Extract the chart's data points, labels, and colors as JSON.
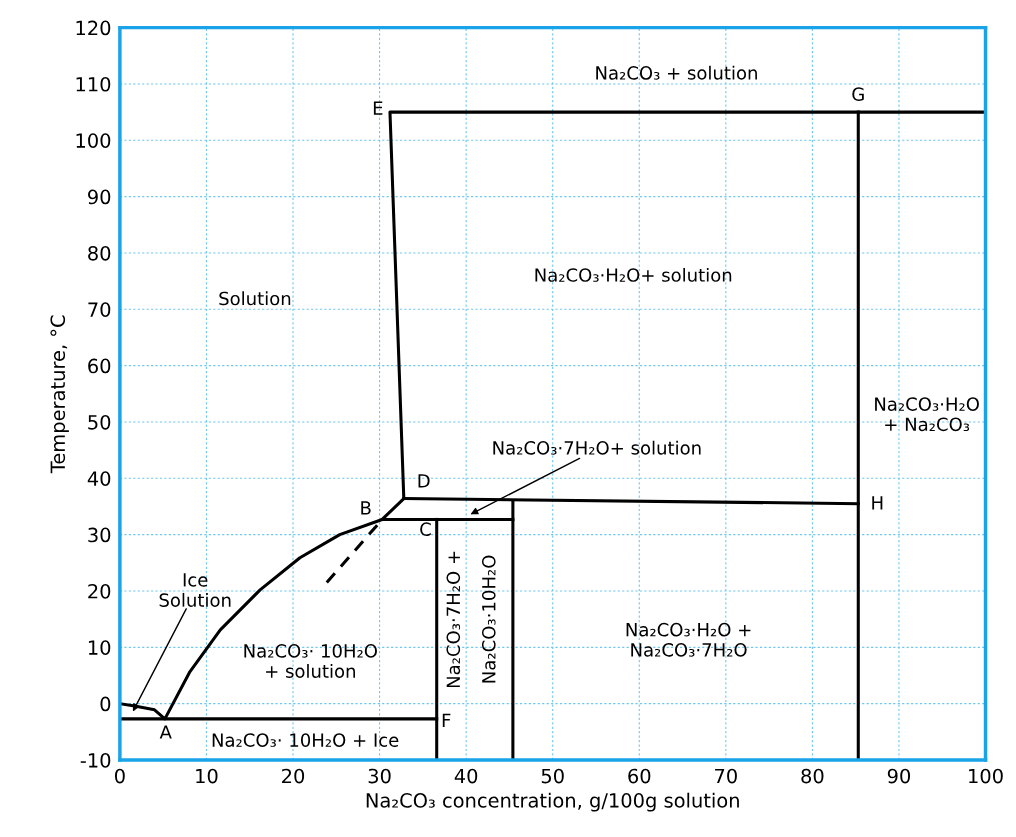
{
  "chart_data": {
    "type": "line",
    "xlabel": "Na₂CO₃ concentration, g/100g solution",
    "ylabel": "Temperature, °C",
    "xlim": [
      0,
      100
    ],
    "ylim": [
      -10,
      120
    ],
    "xticks": [
      0,
      10,
      20,
      30,
      40,
      50,
      60,
      70,
      80,
      90,
      100
    ],
    "yticks": [
      -10,
      0,
      10,
      20,
      30,
      40,
      50,
      60,
      70,
      80,
      90,
      100,
      110,
      120
    ],
    "grid": true,
    "legend": false,
    "marker": "none",
    "series": [
      {
        "color": "#000000",
        "x": [
          0,
          1.7,
          4.0,
          5.2,
          8.1,
          11.6,
          16.2,
          20.8,
          25.4,
          30.3,
          32.8,
          31.2,
          100
        ],
        "values": [
          0,
          -0.4,
          -1.1,
          -2.7,
          5.7,
          13.1,
          20.2,
          25.9,
          30.0,
          32.7,
          36.4,
          105,
          105
        ]
      },
      {
        "color": "#000000",
        "line_style": "dashed",
        "x": [
          23.9,
          30.3
        ],
        "values": [
          21.5,
          32.7
        ]
      },
      {
        "color": "#000000",
        "x": [
          85.3,
          85.3
        ],
        "values": [
          105,
          -10
        ]
      },
      {
        "color": "#000000",
        "x": [
          32.8,
          85.3
        ],
        "values": [
          36.4,
          35.5
        ]
      },
      {
        "color": "#000000",
        "x": [
          30.3,
          45.4
        ],
        "values": [
          32.7,
          32.7
        ]
      },
      {
        "color": "#000000",
        "x": [
          36.6,
          36.6
        ],
        "values": [
          32.7,
          -10
        ]
      },
      {
        "color": "#000000",
        "x": [
          45.4,
          45.4
        ],
        "values": [
          36,
          -10
        ]
      },
      {
        "color": "#000000",
        "x": [
          0,
          36.6
        ],
        "values": [
          -2.7,
          -2.7
        ]
      }
    ],
    "annotations": [
      "Na₂CO₃ + solution",
      "E",
      "G",
      "Na₂CO₃·H₂O+ solution",
      "Solution",
      "Na₂CO₃·H₂O\n+ Na₂CO₃",
      {
        "text": "Na₂CO₃·7H₂O+ solution",
        "x": 40.5,
        "y": 33.6
      },
      "D",
      "B",
      "C",
      "H",
      {
        "text": "Ice\nSolution",
        "x": 1.5,
        "y": -1.4
      },
      "Na₂CO₃· 10H₂O\n+ solution",
      "Na₂CO₃·7H₂O +",
      "Na₂CO₃·10H₂O",
      "Na₂CO₃·H₂O +\nNa₂CO₃·7H₂O",
      "Na₂CO₃· 10H₂O + Ice",
      "F",
      "A"
    ]
  }
}
